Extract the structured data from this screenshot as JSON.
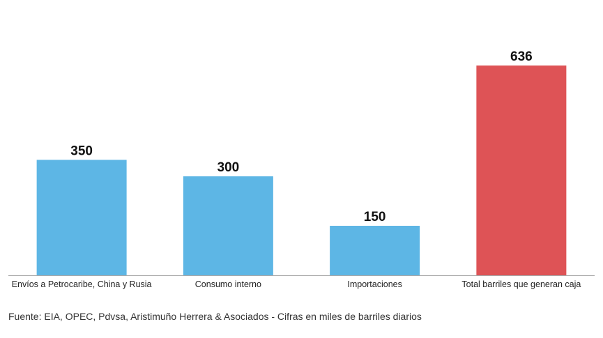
{
  "chart_data": {
    "type": "bar",
    "categories": [
      "Envíos a Petrocaribe, China y Rusia",
      "Consumo interno",
      "Importaciones",
      "Total barriles que generan caja"
    ],
    "values": [
      350,
      300,
      150,
      636
    ],
    "colors": [
      "#5db6e5",
      "#5db6e5",
      "#5db6e5",
      "#de5356"
    ],
    "ylim": [
      0,
      636
    ],
    "grid": false,
    "legend": "none",
    "value_labels": true
  },
  "source": "Fuente: EIA, OPEC, Pdvsa, Aristimuño Herrera & Asociados - Cifras en miles de barriles diarios"
}
